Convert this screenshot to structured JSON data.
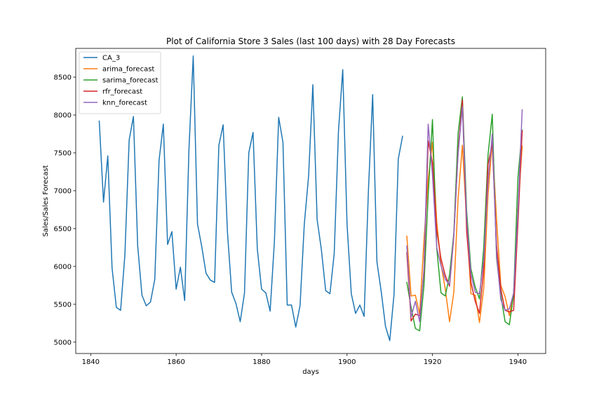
{
  "chart_data": {
    "type": "line",
    "title": "Plot of California Store 3 Sales (last 100 days) with 28 Day Forecasts",
    "xlabel": "days",
    "ylabel": "Sales/Sales Forecast",
    "xlim": [
      1836.5,
      1946.5
    ],
    "ylim": [
      4850,
      8880
    ],
    "xticks": [
      1840,
      1860,
      1880,
      1900,
      1920,
      1940
    ],
    "yticks": [
      5000,
      5500,
      6000,
      6500,
      7000,
      7500,
      8000,
      8500
    ],
    "legend_position": "upper-left",
    "grid": false,
    "series": [
      {
        "name": "CA_3",
        "color": "#1f77b4",
        "x_start": 1842,
        "values": [
          7920,
          6850,
          7460,
          5980,
          5460,
          5420,
          6150,
          7670,
          7980,
          6270,
          5620,
          5480,
          5530,
          5830,
          7400,
          7880,
          6290,
          6460,
          5700,
          5990,
          5550,
          7550,
          8780,
          6560,
          6260,
          5910,
          5820,
          5790,
          7600,
          7870,
          6460,
          5660,
          5510,
          5270,
          5650,
          7500,
          7770,
          6230,
          5700,
          5650,
          5410,
          6330,
          7970,
          7640,
          5490,
          5490,
          5200,
          5480,
          6560,
          7190,
          8400,
          6620,
          6220,
          5680,
          5640,
          6170,
          7790,
          8600,
          6560,
          5640,
          5380,
          5490,
          5340,
          6990,
          8270,
          6060,
          5670,
          5210,
          5020,
          5630,
          7420,
          7720
        ]
      },
      {
        "name": "arima_forecast",
        "color": "#ff7f0e",
        "x_start": 1914,
        "values": [
          6400,
          5610,
          5620,
          5370,
          6340,
          7150,
          7640,
          6590,
          6030,
          5700,
          5270,
          5660,
          6900,
          7600,
          6600,
          5640,
          5620,
          5260,
          5710,
          6940,
          7650,
          6620,
          5750,
          5600,
          5350,
          5640,
          6750,
          7590
        ]
      },
      {
        "name": "sarima_forecast",
        "color": "#2ca02c",
        "x_start": 1914,
        "values": [
          5790,
          5460,
          5180,
          5150,
          5740,
          6950,
          7940,
          6240,
          5650,
          5610,
          5890,
          6440,
          7760,
          8240,
          6730,
          5970,
          5730,
          5570,
          6250,
          7470,
          8010,
          6110,
          5620,
          5270,
          5230,
          5630,
          7170,
          7800
        ]
      },
      {
        "name": "rfr_forecast",
        "color": "#d62728",
        "x_start": 1914,
        "values": [
          6180,
          5280,
          5370,
          5350,
          5910,
          7660,
          7370,
          6470,
          6100,
          5880,
          5740,
          6400,
          7520,
          8200,
          6460,
          5790,
          5540,
          5380,
          5960,
          7350,
          7620,
          6280,
          5700,
          5420,
          5400,
          5420,
          6560,
          7790
        ]
      },
      {
        "name": "knn_forecast",
        "color": "#9467bd",
        "x_start": 1914,
        "values": [
          6270,
          5330,
          5540,
          5270,
          5960,
          7880,
          7210,
          6250,
          6010,
          5830,
          5760,
          6420,
          7490,
          8110,
          6620,
          5900,
          5660,
          5640,
          6080,
          7120,
          7750,
          6150,
          5560,
          5420,
          5440,
          5650,
          6720,
          8070
        ]
      }
    ]
  }
}
